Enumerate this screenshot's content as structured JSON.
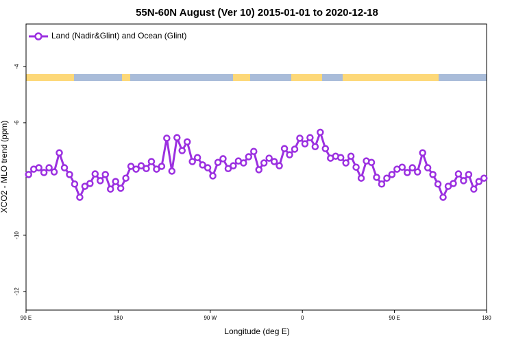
{
  "chart_data": {
    "type": "line",
    "title": "55N-60N August (Ver 10)   2015-01-01 to 2020-12-18",
    "xlabel": "Longitude (deg E)",
    "ylabel": "XCO2 - MLO trend (ppm)",
    "legend": "upper left",
    "xlim": [
      90,
      540
    ],
    "ylim": [
      -12.66,
      -2.49
    ],
    "xticks": [
      {
        "value": 90,
        "label": "90 E"
      },
      180,
      {
        "value": 270,
        "label": "90 W"
      },
      {
        "value": 360,
        "label": "0"
      },
      {
        "value": 450,
        "label": "90 E"
      },
      {
        "value": 540,
        "label": "180"
      }
    ],
    "yticks": [
      -12,
      -10,
      -6,
      -4
    ],
    "x": [
      92.5,
      97.5,
      102.5,
      107.5,
      112.5,
      117.5,
      122.5,
      127.5,
      132.5,
      137.5,
      142.5,
      147.5,
      152.5,
      157.5,
      162.5,
      167.5,
      172.5,
      177.5,
      182.5,
      187.5,
      192.5,
      197.5,
      202.5,
      207.5,
      212.5,
      217.5,
      222.5,
      227.5,
      232.5,
      237.5,
      242.5,
      247.5,
      252.5,
      257.5,
      262.5,
      267.5,
      272.5,
      277.5,
      282.5,
      287.5,
      292.5,
      297.5,
      302.5,
      307.5,
      312.5,
      317.5,
      322.5,
      327.5,
      332.5,
      337.5,
      342.5,
      347.5,
      352.5,
      357.5,
      362.5,
      367.5,
      372.5,
      377.5,
      382.5,
      387.5,
      392.5,
      397.5,
      402.5,
      407.5,
      412.5,
      417.5,
      422.5,
      427.5,
      432.5,
      437.5,
      442.5,
      447.5,
      452.5,
      457.5,
      462.5,
      467.5,
      472.5,
      477.5,
      482.5,
      487.5,
      492.5,
      497.5,
      502.5,
      507.5,
      512.5,
      517.5,
      522.5,
      527.5,
      532.5,
      537.5
    ],
    "series": [
      {
        "name": "Land (Nadir&Glint) and Ocean (Glint)",
        "color": "#9b30e0",
        "values": [
          -7.84,
          -7.65,
          -7.6,
          -7.77,
          -7.6,
          -7.75,
          -7.07,
          -7.6,
          -7.84,
          -8.18,
          -8.65,
          -8.26,
          -8.16,
          -7.82,
          -8.06,
          -7.84,
          -8.36,
          -8.09,
          -8.33,
          -7.97,
          -7.55,
          -7.65,
          -7.53,
          -7.63,
          -7.38,
          -7.65,
          -7.55,
          -6.55,
          -7.72,
          -6.53,
          -6.99,
          -6.68,
          -7.38,
          -7.24,
          -7.5,
          -7.6,
          -7.89,
          -7.41,
          -7.28,
          -7.63,
          -7.53,
          -7.36,
          -7.43,
          -7.21,
          -7.02,
          -7.67,
          -7.43,
          -7.26,
          -7.38,
          -7.53,
          -6.92,
          -7.14,
          -6.94,
          -6.55,
          -6.75,
          -6.53,
          -6.85,
          -6.34,
          -6.92,
          -7.26,
          -7.19,
          -7.24,
          -7.43,
          -7.19,
          -7.58,
          -7.97,
          -7.36,
          -7.41,
          -7.94,
          -8.18,
          -7.97,
          -7.84,
          -7.65,
          -7.58,
          -7.77,
          -7.6,
          -7.75,
          -7.07,
          -7.6,
          -7.84,
          -8.18,
          -8.65,
          -8.26,
          -8.16,
          -7.82,
          -8.06,
          -7.84,
          -8.36,
          -8.09,
          -7.97
        ]
      }
    ]
  }
}
